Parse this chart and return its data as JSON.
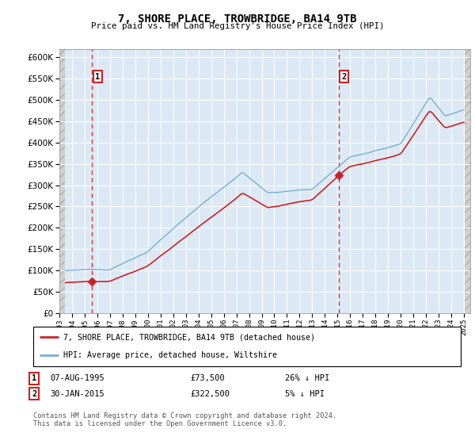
{
  "title": "7, SHORE PLACE, TROWBRIDGE, BA14 9TB",
  "subtitle": "Price paid vs. HM Land Registry's House Price Index (HPI)",
  "ylim": [
    0,
    620000
  ],
  "xlim_start": 1993.0,
  "xlim_end": 2025.5,
  "sale1_date": 1995.58,
  "sale1_price": 73500,
  "sale1_label": "1",
  "sale2_date": 2015.08,
  "sale2_price": 322500,
  "sale2_label": "2",
  "hpi_color": "#7aadd4",
  "price_color": "#cc2222",
  "dashed_color": "#dd3333",
  "background_plot": "#dce9f5",
  "hatch_color": "#c8c8c8",
  "grid_color": "#ffffff",
  "legend_label1": "7, SHORE PLACE, TROWBRIDGE, BA14 9TB (detached house)",
  "legend_label2": "HPI: Average price, detached house, Wiltshire",
  "footnote": "Contains HM Land Registry data © Crown copyright and database right 2024.\nThis data is licensed under the Open Government Licence v3.0.",
  "xtick_years": [
    1993,
    1994,
    1995,
    1996,
    1997,
    1998,
    1999,
    2000,
    2001,
    2002,
    2003,
    2004,
    2005,
    2006,
    2007,
    2008,
    2009,
    2010,
    2011,
    2012,
    2013,
    2014,
    2015,
    2016,
    2017,
    2018,
    2019,
    2020,
    2021,
    2022,
    2023,
    2024,
    2025
  ],
  "hpi_base_1993": 98000,
  "hpi_peak_2007": 330000,
  "hpi_trough_2009": 285000,
  "hpi_2013": 290000,
  "hpi_2015": 345000,
  "hpi_2020": 395000,
  "hpi_peak_2022": 510000,
  "hpi_2024": 480000
}
